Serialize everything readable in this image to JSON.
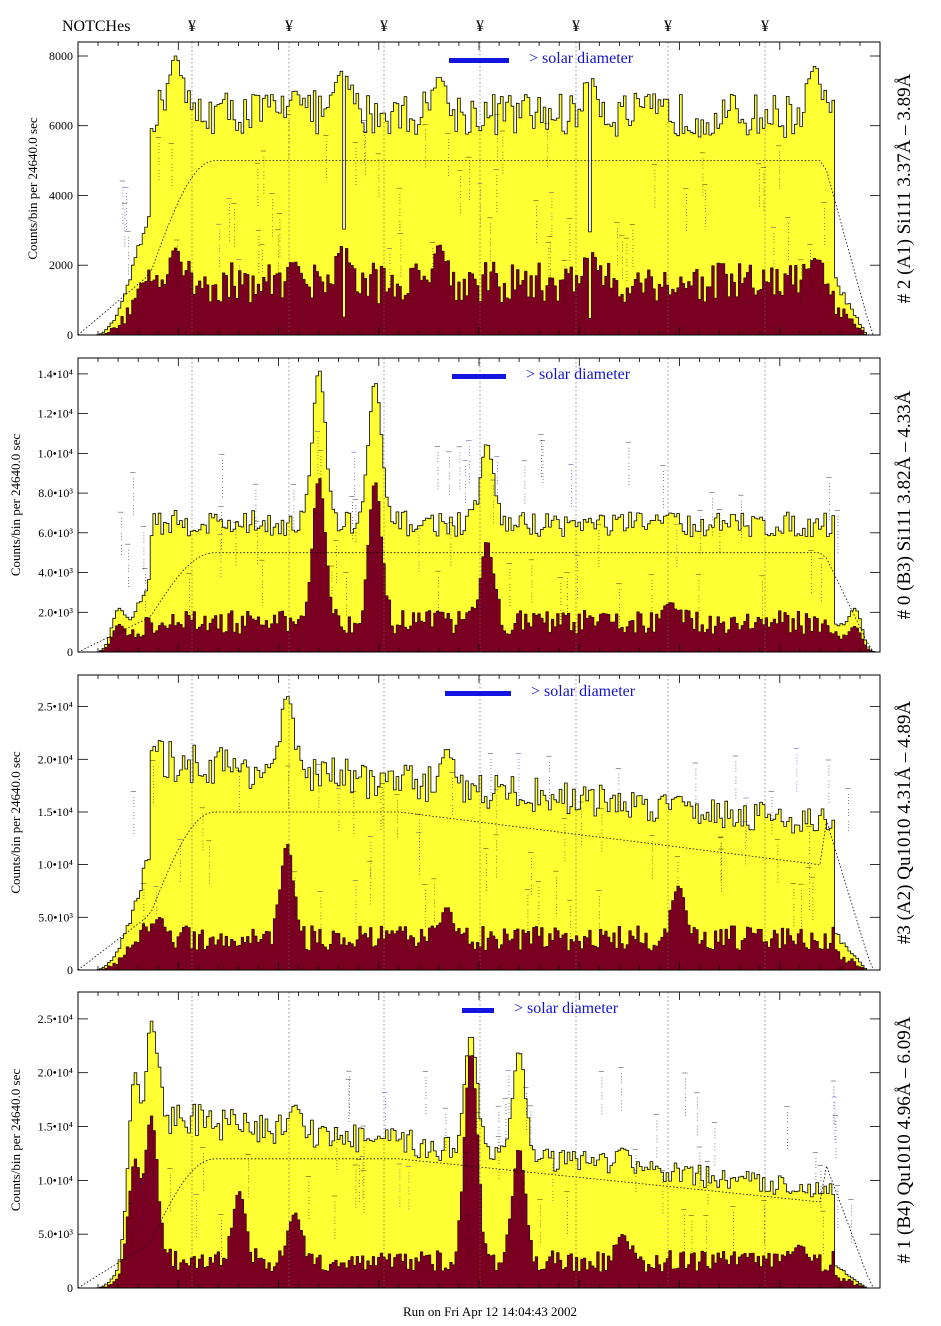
{
  "header": {
    "notch_label": "NOTCHes",
    "notch_symbol": "¥"
  },
  "footer": {
    "run_text": "Run on Fri Apr 12 14:04:43 2002"
  },
  "legend_text": "> solar diameter",
  "colors": {
    "envelope": "#ffff33",
    "fill": "#7a0022",
    "legend_bar": "#1414e0",
    "legend_text": "#1414c8",
    "model": "#000000"
  },
  "chart_data": [
    {
      "type": "area",
      "title": "# 2 (A1) Si111  3.37Å – 3.89Å",
      "ylabel": "Counts/bin per  24640.0 sec",
      "ylim": [
        0,
        8400
      ],
      "yticks": [
        "0",
        "2000",
        "4000",
        "6000",
        "8000"
      ],
      "ytick_values": [
        0,
        2000,
        4000,
        6000,
        8000
      ],
      "plateau": 6400,
      "plateau_low": 5600,
      "fill_level": 1500,
      "model_level": 5000,
      "peaks": [
        [
          0.08,
          2600,
          1500
        ],
        [
          0.27,
          7000,
          2100
        ],
        [
          0.33,
          7600,
          2600
        ],
        [
          0.45,
          7400,
          2600
        ],
        [
          0.64,
          7400,
          2400
        ],
        [
          0.92,
          7700,
          2200
        ],
        [
          0.12,
          8000,
          2500
        ]
      ],
      "dips": [
        0.33,
        0.64
      ],
      "legend_bar_len": 60
    },
    {
      "type": "area",
      "title": "# 0 (B3) Si111  3.82Å – 4.33Å",
      "ylabel": "Counts/bin per  24640.0 sec",
      "ylim": [
        0,
        14800
      ],
      "yticks": [
        "0",
        "2.0•10³",
        "4.0•10³",
        "6.0•10³",
        "8.0•10³",
        "1.0•10⁴",
        "1.2•10⁴",
        "1.4•10⁴"
      ],
      "ytick_values": [
        0,
        2000,
        4000,
        6000,
        8000,
        10000,
        12000,
        14000
      ],
      "plateau": 6500,
      "plateau_low": 5800,
      "fill_level": 1500,
      "model_level": 5000,
      "peaks": [
        [
          0.05,
          2200,
          1400
        ],
        [
          0.3,
          14200,
          8800
        ],
        [
          0.37,
          13600,
          8600
        ],
        [
          0.51,
          10500,
          5600
        ],
        [
          0.74,
          7000,
          2500
        ],
        [
          0.97,
          2200,
          1300
        ]
      ],
      "dips": [],
      "legend_bar_len": 54
    },
    {
      "type": "area",
      "title": "#3 (A2) Qu1010  4.31Å – 4.89Å",
      "ylabel": "Counts/bin per  24640.0 sec",
      "ylim": [
        0,
        28000
      ],
      "yticks": [
        "0",
        "5.0•10³",
        "1.0•10⁴",
        "1.5•10⁴",
        "2.0•10⁴",
        "2.5•10⁴"
      ],
      "ytick_values": [
        0,
        5000,
        10000,
        15000,
        20000,
        25000
      ],
      "plateau": 20000,
      "plateau_low": 14000,
      "fill_level": 3000,
      "model_level": 15000,
      "peaks": [
        [
          0.26,
          26000,
          12000
        ],
        [
          0.1,
          6000,
          5000
        ],
        [
          0.46,
          21000,
          6000
        ],
        [
          0.75,
          16500,
          8000
        ]
      ],
      "dips": [],
      "legend_bar_len": 66
    },
    {
      "type": "area",
      "title": "# 1 (B4) Qu1010 4.96Å – 6.09Å",
      "ylabel": "Counts/bin per  24640.0 sec",
      "ylim": [
        0,
        27500
      ],
      "yticks": [
        "0",
        "5.0•10³",
        "1.0•10⁴",
        "1.5•10⁴",
        "2.0•10⁴",
        "2.5•10⁴"
      ],
      "ytick_values": [
        0,
        5000,
        10000,
        15000,
        20000,
        25000
      ],
      "plateau": 16000,
      "plateau_low": 9000,
      "fill_level": 2500,
      "model_level": 12000,
      "peaks": [
        [
          0.09,
          24800,
          16000
        ],
        [
          0.07,
          20000,
          12000
        ],
        [
          0.2,
          14000,
          9000
        ],
        [
          0.27,
          17000,
          7000
        ],
        [
          0.49,
          23500,
          22000
        ],
        [
          0.55,
          22000,
          13000
        ],
        [
          0.68,
          13000,
          5000
        ],
        [
          0.9,
          9000,
          4000
        ]
      ],
      "dips": [],
      "legend_bar_len": 32
    }
  ]
}
